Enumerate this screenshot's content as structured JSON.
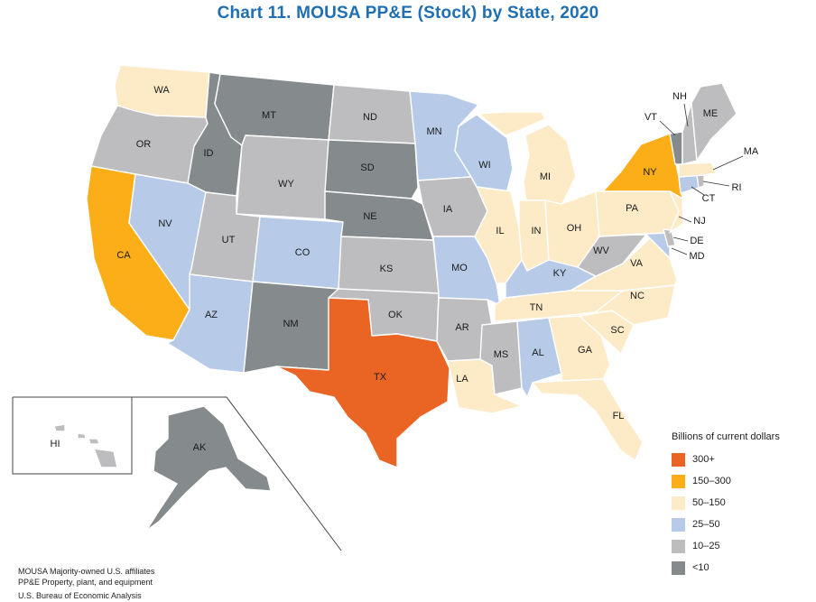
{
  "title": "Chart 11. MOUSA PP&E (Stock) by State, 2020",
  "legend": {
    "title": "Billions of current dollars",
    "items": [
      {
        "label": "300+",
        "color": "#ea6424"
      },
      {
        "label": "150–300",
        "color": "#fbae18"
      },
      {
        "label": "50–150",
        "color": "#fdebc8"
      },
      {
        "label": "25–50",
        "color": "#b7cbe9"
      },
      {
        "label": "10–25",
        "color": "#bdbdbf"
      },
      {
        "label": "<10",
        "color": "#858a8d"
      }
    ]
  },
  "states": [
    {
      "abbr": "WA",
      "category": "50–150"
    },
    {
      "abbr": "OR",
      "category": "10–25"
    },
    {
      "abbr": "CA",
      "category": "150–300"
    },
    {
      "abbr": "ID",
      "category": "<10"
    },
    {
      "abbr": "NV",
      "category": "25–50"
    },
    {
      "abbr": "MT",
      "category": "<10"
    },
    {
      "abbr": "WY",
      "category": "10–25"
    },
    {
      "abbr": "UT",
      "category": "10–25"
    },
    {
      "abbr": "AZ",
      "category": "25–50"
    },
    {
      "abbr": "CO",
      "category": "25–50"
    },
    {
      "abbr": "NM",
      "category": "<10"
    },
    {
      "abbr": "ND",
      "category": "10–25"
    },
    {
      "abbr": "SD",
      "category": "<10"
    },
    {
      "abbr": "NE",
      "category": "<10"
    },
    {
      "abbr": "KS",
      "category": "10–25"
    },
    {
      "abbr": "OK",
      "category": "10–25"
    },
    {
      "abbr": "TX",
      "category": "300+"
    },
    {
      "abbr": "MN",
      "category": "25–50"
    },
    {
      "abbr": "IA",
      "category": "10–25"
    },
    {
      "abbr": "MO",
      "category": "25–50"
    },
    {
      "abbr": "AR",
      "category": "10–25"
    },
    {
      "abbr": "LA",
      "category": "50–150"
    },
    {
      "abbr": "WI",
      "category": "25–50"
    },
    {
      "abbr": "IL",
      "category": "50–150"
    },
    {
      "abbr": "MI",
      "category": "50–150"
    },
    {
      "abbr": "IN",
      "category": "50–150"
    },
    {
      "abbr": "OH",
      "category": "50–150"
    },
    {
      "abbr": "KY",
      "category": "25–50"
    },
    {
      "abbr": "TN",
      "category": "50–150"
    },
    {
      "abbr": "MS",
      "category": "10–25"
    },
    {
      "abbr": "AL",
      "category": "25–50"
    },
    {
      "abbr": "GA",
      "category": "50–150"
    },
    {
      "abbr": "FL",
      "category": "50–150"
    },
    {
      "abbr": "SC",
      "category": "50–150"
    },
    {
      "abbr": "NC",
      "category": "50–150"
    },
    {
      "abbr": "VA",
      "category": "50–150"
    },
    {
      "abbr": "WV",
      "category": "10–25"
    },
    {
      "abbr": "PA",
      "category": "50–150"
    },
    {
      "abbr": "NY",
      "category": "150–300"
    },
    {
      "abbr": "MD",
      "category": "25–50"
    },
    {
      "abbr": "DE",
      "category": "10–25"
    },
    {
      "abbr": "NJ",
      "category": "50–150"
    },
    {
      "abbr": "CT",
      "category": "25–50"
    },
    {
      "abbr": "RI",
      "category": "10–25"
    },
    {
      "abbr": "MA",
      "category": "50–150"
    },
    {
      "abbr": "VT",
      "category": "<10"
    },
    {
      "abbr": "NH",
      "category": "10–25"
    },
    {
      "abbr": "ME",
      "category": "10–25"
    },
    {
      "abbr": "AK",
      "category": "<10"
    },
    {
      "abbr": "HI",
      "category": "10–25"
    }
  ],
  "notes": [
    "MOUSA  Majority-owned U.S. affiliates",
    "PP&E  Property, plant, and equipment"
  ],
  "source": "U.S. Bureau of Economic Analysis"
}
